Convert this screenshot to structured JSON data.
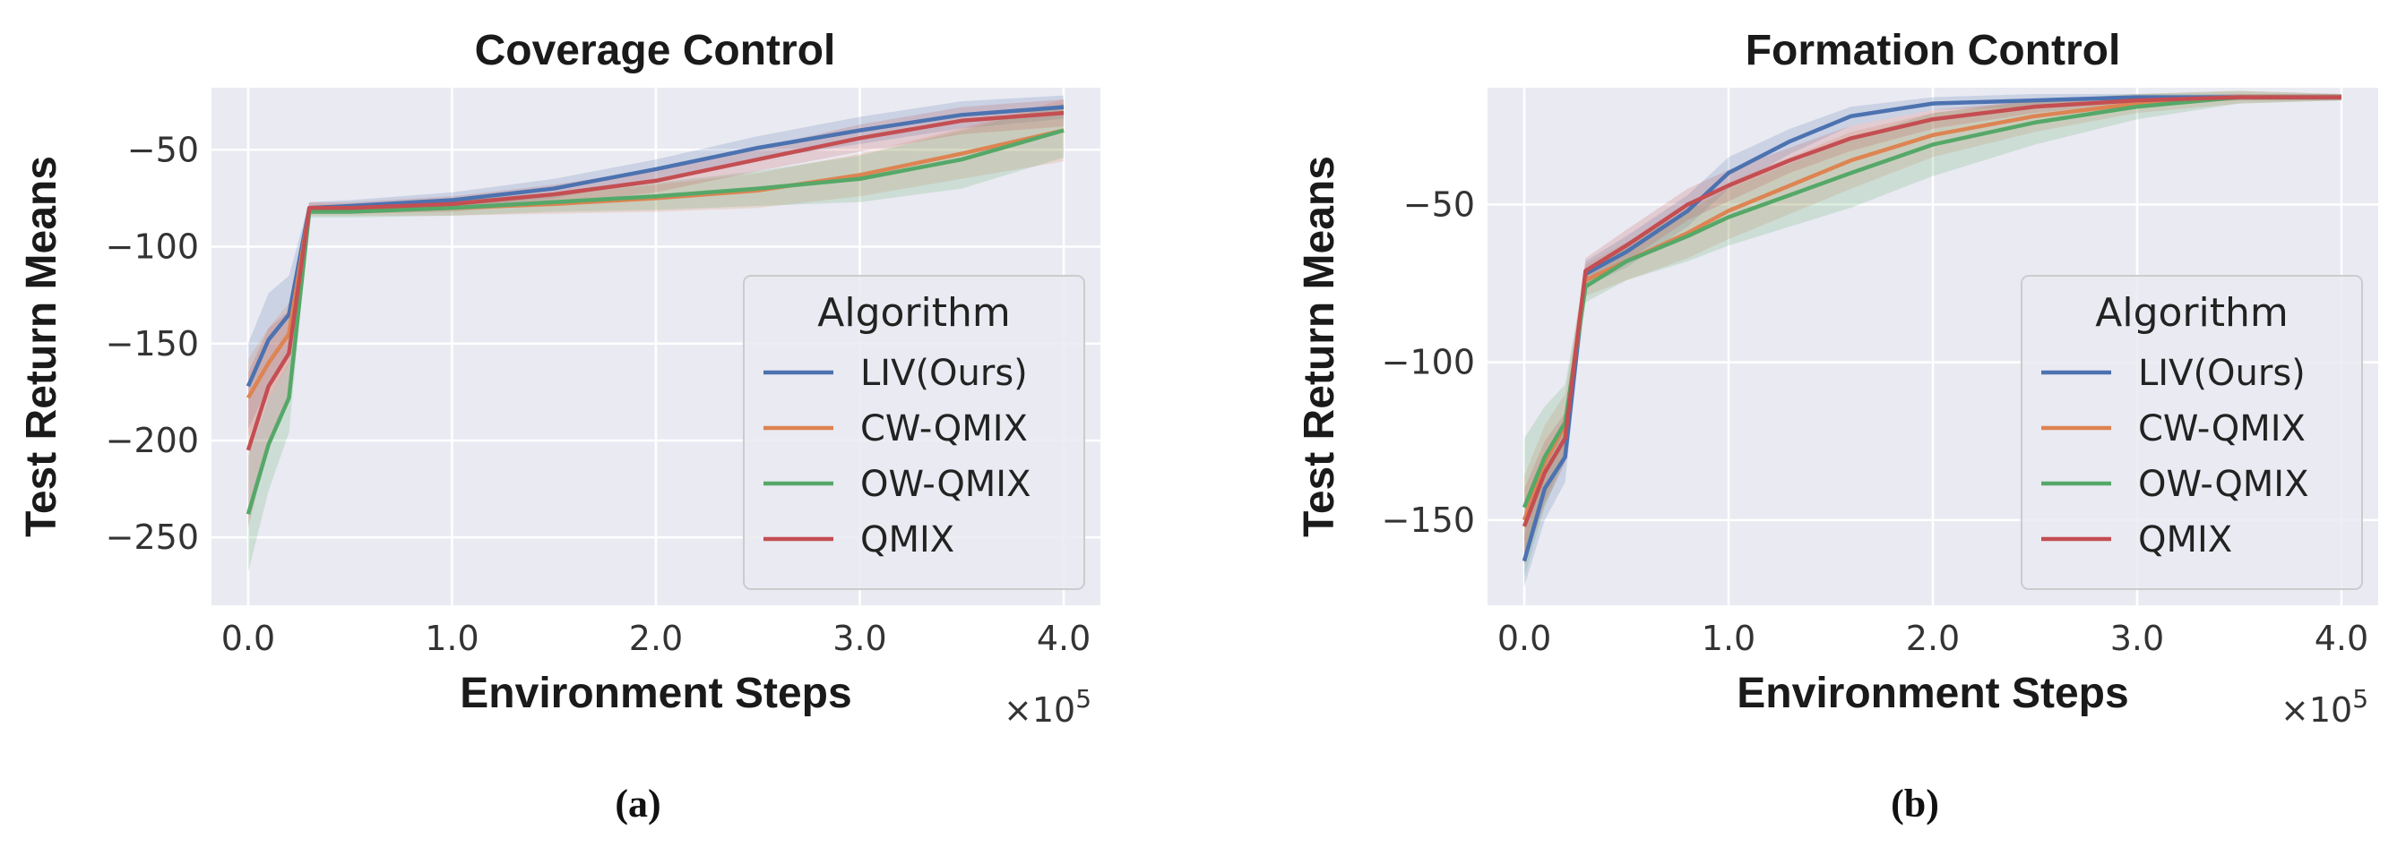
{
  "chart_data": [
    {
      "type": "line",
      "panel_label": "(a)",
      "title": "Coverage Control",
      "xlabel": "Environment Steps",
      "ylabel": "Test Return Means",
      "x_multiplier": "×10",
      "x_multiplier_exp": "5",
      "xlim": [
        -0.18,
        4.18
      ],
      "ylim": [
        -285,
        -18
      ],
      "xticks": [
        0.0,
        1.0,
        2.0,
        3.0,
        4.0
      ],
      "xtick_labels": [
        "0.0",
        "1.0",
        "2.0",
        "3.0",
        "4.0"
      ],
      "yticks": [
        -250,
        -200,
        -150,
        -100,
        -50
      ],
      "ytick_labels": [
        "−250",
        "−200",
        "−150",
        "−100",
        "−50"
      ],
      "legend_title": "Algorithm",
      "legend_position": "lower-right",
      "grid": true,
      "series": [
        {
          "name": "LIV(Ours)",
          "color": "#4C72B0",
          "x": [
            0,
            0.1,
            0.2,
            0.3,
            0.5,
            1.0,
            1.5,
            2.0,
            2.5,
            3.0,
            3.5,
            4.0
          ],
          "y": [
            -172,
            -148,
            -135,
            -80,
            -79,
            -76,
            -70,
            -60,
            -49,
            -40,
            -32,
            -28
          ],
          "band": [
            22,
            24,
            20,
            3,
            3,
            4,
            5,
            5,
            6,
            7,
            7,
            6
          ]
        },
        {
          "name": "CW-QMIX",
          "color": "#DD8452",
          "x": [
            0,
            0.1,
            0.2,
            0.3,
            0.5,
            1.0,
            1.5,
            2.0,
            2.5,
            3.0,
            3.5,
            4.0
          ],
          "y": [
            -178,
            -160,
            -145,
            -81,
            -81,
            -80,
            -78,
            -75,
            -71,
            -63,
            -52,
            -40
          ],
          "band": [
            20,
            18,
            16,
            3,
            3,
            4,
            5,
            7,
            9,
            11,
            13,
            16
          ]
        },
        {
          "name": "OW-QMIX",
          "color": "#55A868",
          "x": [
            0,
            0.1,
            0.2,
            0.3,
            0.5,
            1.0,
            1.5,
            2.0,
            2.5,
            3.0,
            3.5,
            4.0
          ],
          "y": [
            -238,
            -202,
            -178,
            -82,
            -82,
            -80,
            -77,
            -74,
            -70,
            -65,
            -55,
            -40
          ],
          "band": [
            30,
            24,
            18,
            3,
            3,
            4,
            5,
            7,
            9,
            12,
            15,
            14
          ]
        },
        {
          "name": "QMIX",
          "color": "#C44E52",
          "x": [
            0,
            0.1,
            0.2,
            0.3,
            0.5,
            1.0,
            1.5,
            2.0,
            2.5,
            3.0,
            3.5,
            4.0
          ],
          "y": [
            -205,
            -172,
            -155,
            -80,
            -80,
            -78,
            -73,
            -66,
            -55,
            -44,
            -35,
            -31
          ],
          "band": [
            40,
            30,
            22,
            3,
            3,
            4,
            5,
            6,
            6,
            7,
            7,
            7
          ]
        }
      ]
    },
    {
      "type": "line",
      "panel_label": "(b)",
      "title": "Formation Control",
      "xlabel": "Environment Steps",
      "ylabel": "Test Return Means",
      "x_multiplier": "×10",
      "x_multiplier_exp": "5",
      "xlim": [
        -0.18,
        4.18
      ],
      "ylim": [
        -177,
        -13
      ],
      "xticks": [
        0.0,
        1.0,
        2.0,
        3.0,
        4.0
      ],
      "xtick_labels": [
        "0.0",
        "1.0",
        "2.0",
        "3.0",
        "4.0"
      ],
      "yticks": [
        -150,
        -100,
        -50
      ],
      "ytick_labels": [
        "−150",
        "−100",
        "−50"
      ],
      "legend_title": "Algorithm",
      "legend_position": "lower-right",
      "grid": true,
      "series": [
        {
          "name": "LIV(Ours)",
          "color": "#4C72B0",
          "x": [
            0,
            0.1,
            0.2,
            0.3,
            0.5,
            0.8,
            1.0,
            1.3,
            1.6,
            2.0,
            2.5,
            3.0,
            3.5,
            4.0
          ],
          "y": [
            -163,
            -140,
            -130,
            -72,
            -65,
            -52,
            -40,
            -30,
            -22,
            -18,
            -17,
            -16,
            -16,
            -16
          ],
          "band": [
            8,
            10,
            8,
            4,
            5,
            5,
            5,
            4,
            3,
            2,
            2,
            1,
            1,
            1
          ]
        },
        {
          "name": "CW-QMIX",
          "color": "#DD8452",
          "x": [
            0,
            0.1,
            0.2,
            0.3,
            0.5,
            0.8,
            1.0,
            1.3,
            1.6,
            2.0,
            2.5,
            3.0,
            3.5,
            4.0
          ],
          "y": [
            -150,
            -132,
            -120,
            -74,
            -68,
            -59,
            -52,
            -44,
            -36,
            -28,
            -22,
            -18,
            -16,
            -16
          ],
          "band": [
            14,
            12,
            10,
            5,
            6,
            8,
            9,
            9,
            9,
            7,
            5,
            3,
            2,
            1
          ]
        },
        {
          "name": "OW-QMIX",
          "color": "#55A868",
          "x": [
            0,
            0.1,
            0.2,
            0.3,
            0.5,
            0.8,
            1.0,
            1.3,
            1.6,
            2.0,
            2.5,
            3.0,
            3.5,
            4.0
          ],
          "y": [
            -146,
            -130,
            -119,
            -76,
            -68,
            -60,
            -54,
            -47,
            -40,
            -31,
            -24,
            -19,
            -16,
            -16
          ],
          "band": [
            22,
            16,
            12,
            5,
            6,
            8,
            9,
            10,
            11,
            10,
            7,
            4,
            2,
            1
          ]
        },
        {
          "name": "QMIX",
          "color": "#C44E52",
          "x": [
            0,
            0.1,
            0.2,
            0.3,
            0.5,
            0.8,
            1.0,
            1.3,
            1.6,
            2.0,
            2.5,
            3.0,
            3.5,
            4.0
          ],
          "y": [
            -152,
            -135,
            -124,
            -71,
            -63,
            -50,
            -44,
            -36,
            -29,
            -23,
            -19,
            -17,
            -16,
            -16
          ],
          "band": [
            12,
            10,
            8,
            4,
            5,
            5,
            5,
            4,
            4,
            3,
            2,
            1,
            1,
            1
          ]
        }
      ]
    }
  ]
}
